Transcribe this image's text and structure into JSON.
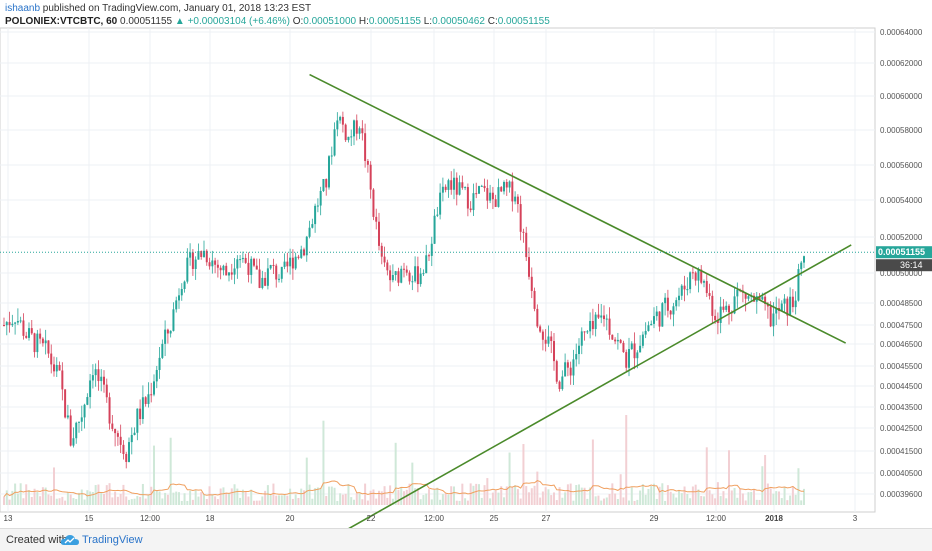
{
  "header": {
    "user": "ishaanb",
    "published": " published on TradingView.com, January 01, 2018 13:23 EST",
    "symbol": "POLONIEX:VTCBTC, 60",
    "last": "0.00051155",
    "change_arrow": "▲",
    "change": "+0.00003104 (+6.46%)",
    "o_label": "O:",
    "o_value": "0.00051000",
    "h_label": "H:",
    "h_value": "0.00051155",
    "l_label": "L:",
    "l_value": "0.00050462",
    "c_label": "C:",
    "c_value": "0.00051155"
  },
  "footer": {
    "created": "Created with",
    "brand": "TradingView"
  },
  "colors": {
    "up": "#26a69a",
    "down": "#d5425a",
    "trend": "#4a8a2a",
    "ma": "#f0a060",
    "price_tag": "#26a69a",
    "countdown_tag": "#4a4a4a"
  },
  "chart_data": {
    "type": "candlestick",
    "x_ticks": [
      "13",
      "15",
      "12:00",
      "18",
      "20",
      "22",
      "12:00",
      "25",
      "27",
      "29",
      "12:00",
      "2018",
      "3"
    ],
    "y_ticks": [
      "0.00064000",
      "0.00062000",
      "0.00060000",
      "0.00058000",
      "0.00056000",
      "0.00054000",
      "0.00052000",
      "0.00050000",
      "0.00048500",
      "0.00047500",
      "0.00046500",
      "0.00045500",
      "0.00044500",
      "0.00043500",
      "0.00042500",
      "0.00041500",
      "0.00040500",
      "0.00039600"
    ],
    "last_price_tag": "0.00051155",
    "countdown_tag": "36:14",
    "series": [
      {
        "x": 0,
        "y": 0.000475
      },
      {
        "x": 4,
        "y": 0.00048
      },
      {
        "x": 8,
        "y": 0.00047
      },
      {
        "x": 12,
        "y": 0.000465
      },
      {
        "x": 16,
        "y": 0.00046
      },
      {
        "x": 20,
        "y": 0.000448
      },
      {
        "x": 24,
        "y": 0.00042
      },
      {
        "x": 28,
        "y": 0.000432
      },
      {
        "x": 32,
        "y": 0.000455
      },
      {
        "x": 36,
        "y": 0.00044
      },
      {
        "x": 40,
        "y": 0.000425
      },
      {
        "x": 44,
        "y": 0.000415
      },
      {
        "x": 48,
        "y": 0.00043
      },
      {
        "x": 52,
        "y": 0.00044
      },
      {
        "x": 56,
        "y": 0.00046
      },
      {
        "x": 60,
        "y": 0.000475
      },
      {
        "x": 64,
        "y": 0.000498
      },
      {
        "x": 68,
        "y": 0.000508
      },
      {
        "x": 72,
        "y": 0.000512
      },
      {
        "x": 76,
        "y": 0.000505
      },
      {
        "x": 80,
        "y": 0.0005
      },
      {
        "x": 84,
        "y": 0.00051
      },
      {
        "x": 88,
        "y": 0.000505
      },
      {
        "x": 92,
        "y": 0.000495
      },
      {
        "x": 96,
        "y": 0.000502
      },
      {
        "x": 100,
        "y": 0.000498
      },
      {
        "x": 104,
        "y": 0.000508
      },
      {
        "x": 108,
        "y": 0.000515
      },
      {
        "x": 112,
        "y": 0.000535
      },
      {
        "x": 116,
        "y": 0.00055
      },
      {
        "x": 120,
        "y": 0.00059
      },
      {
        "x": 124,
        "y": 0.000575
      },
      {
        "x": 128,
        "y": 0.000585
      },
      {
        "x": 132,
        "y": 0.000545
      },
      {
        "x": 136,
        "y": 0.000505
      },
      {
        "x": 140,
        "y": 0.000495
      },
      {
        "x": 144,
        "y": 0.000505
      },
      {
        "x": 148,
        "y": 0.000498
      },
      {
        "x": 152,
        "y": 0.000505
      },
      {
        "x": 156,
        "y": 0.000535
      },
      {
        "x": 160,
        "y": 0.00055
      },
      {
        "x": 164,
        "y": 0.000545
      },
      {
        "x": 168,
        "y": 0.00054
      },
      {
        "x": 172,
        "y": 0.000545
      },
      {
        "x": 176,
        "y": 0.00054
      },
      {
        "x": 180,
        "y": 0.000545
      },
      {
        "x": 184,
        "y": 0.000545
      },
      {
        "x": 188,
        "y": 0.00051
      },
      {
        "x": 192,
        "y": 0.00048
      },
      {
        "x": 196,
        "y": 0.000465
      },
      {
        "x": 200,
        "y": 0.000448
      },
      {
        "x": 204,
        "y": 0.000455
      },
      {
        "x": 208,
        "y": 0.000468
      },
      {
        "x": 212,
        "y": 0.000472
      },
      {
        "x": 216,
        "y": 0.00048
      },
      {
        "x": 220,
        "y": 0.000468
      },
      {
        "x": 224,
        "y": 0.000458
      },
      {
        "x": 228,
        "y": 0.000465
      },
      {
        "x": 232,
        "y": 0.000475
      },
      {
        "x": 236,
        "y": 0.00048
      },
      {
        "x": 240,
        "y": 0.000485
      },
      {
        "x": 244,
        "y": 0.00049
      },
      {
        "x": 248,
        "y": 0.000502
      },
      {
        "x": 252,
        "y": 0.000495
      },
      {
        "x": 256,
        "y": 0.00048
      },
      {
        "x": 260,
        "y": 0.000482
      },
      {
        "x": 264,
        "y": 0.00049
      },
      {
        "x": 268,
        "y": 0.000488
      },
      {
        "x": 272,
        "y": 0.000484
      },
      {
        "x": 276,
        "y": 0.000478
      },
      {
        "x": 280,
        "y": 0.000482
      },
      {
        "x": 284,
        "y": 0.000485
      },
      {
        "x": 288,
        "y": 0.000508
      }
    ],
    "trendlines": [
      {
        "from": {
          "x": 110,
          "y": 0.000613
        },
        "to": {
          "x": 284,
          "y": 0.00048
        }
      },
      {
        "from": {
          "x": 113,
          "y": 0.000373
        },
        "to": {
          "x": 284,
          "y": 0.0005
        }
      }
    ]
  }
}
